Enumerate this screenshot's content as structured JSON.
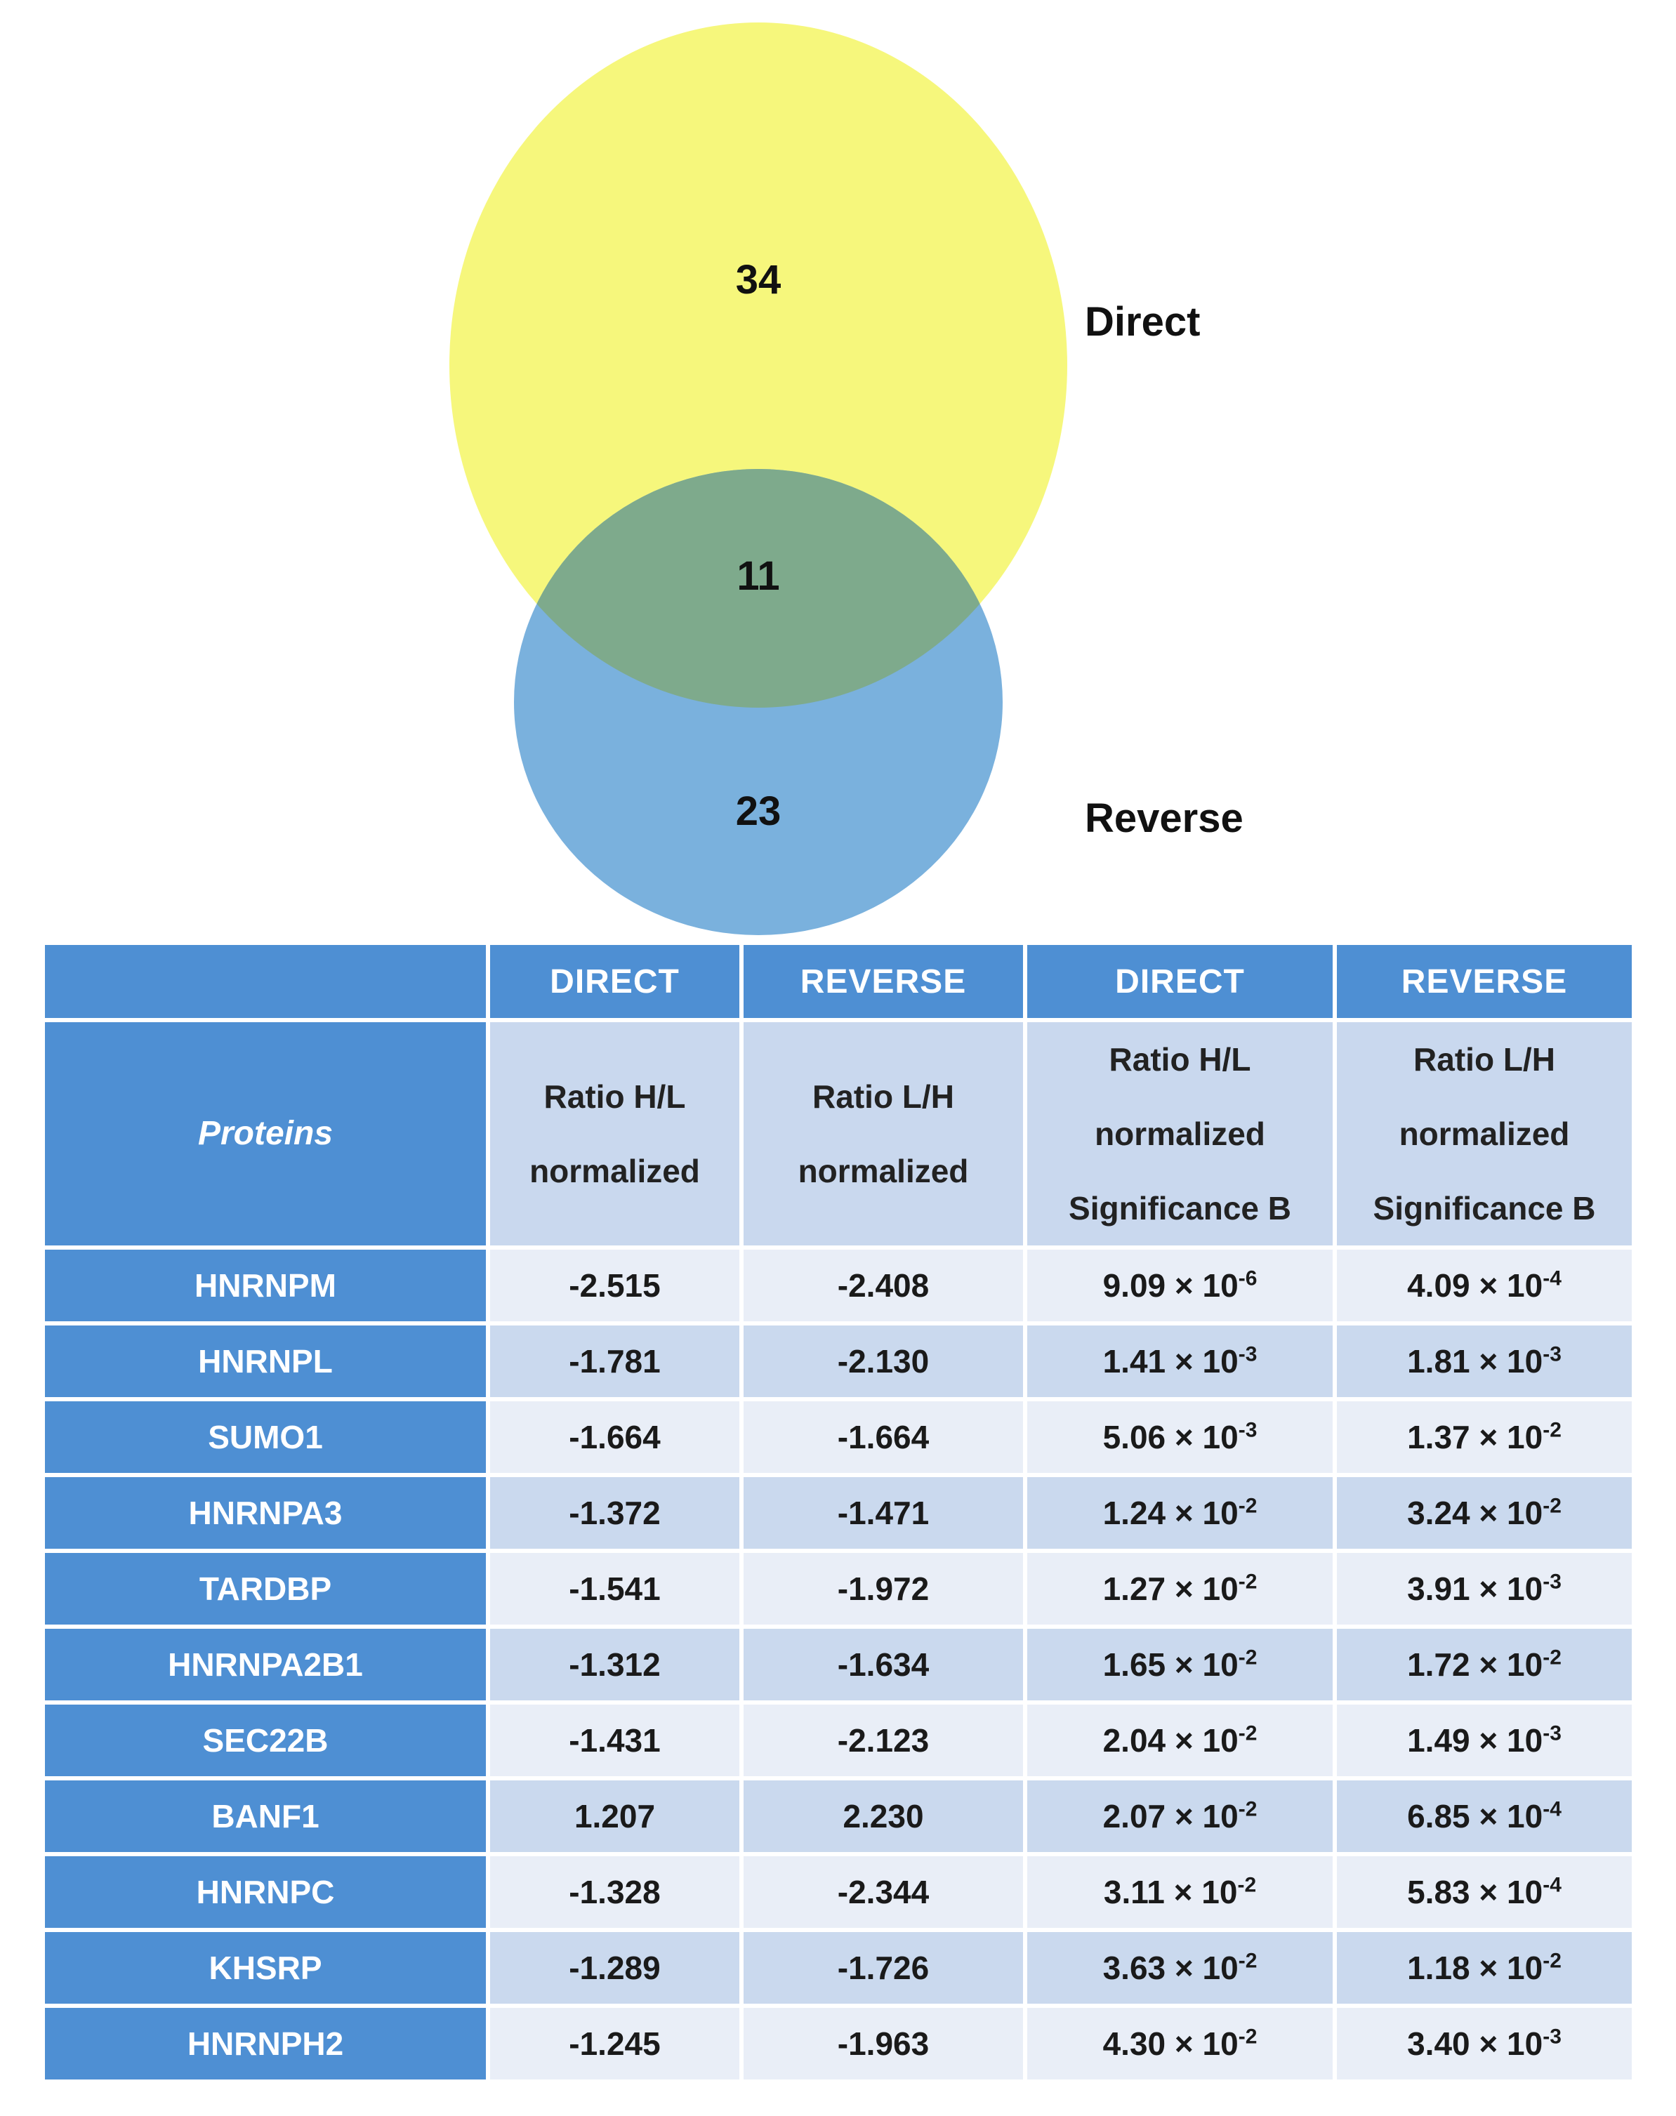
{
  "venn": {
    "sets": [
      {
        "name": "Direct",
        "only": "34",
        "color": "#f6f77c"
      },
      {
        "name": "Reverse",
        "only": "23",
        "color": "#7ab1dd"
      }
    ],
    "overlap": "11",
    "overlap_color": "#7eaa8c"
  },
  "table": {
    "group_headers": [
      "",
      "DIRECT",
      "REVERSE",
      "DIRECT",
      "REVERSE"
    ],
    "proteins_header": "Proteins",
    "sub_headers": [
      [
        "Ratio H/L",
        "normalized"
      ],
      [
        "Ratio L/H",
        "normalized"
      ],
      [
        "Ratio H/L",
        "normalized",
        "Significance B"
      ],
      [
        "Ratio L/H",
        "normalized",
        "Significance B"
      ]
    ],
    "rows": [
      {
        "protein": "HNRNPM",
        "direct_ratio": "-2.515",
        "reverse_ratio": "-2.408",
        "direct_sig": {
          "mantissa": "9.09",
          "exponent": "-6"
        },
        "reverse_sig": {
          "mantissa": "4.09",
          "exponent": "-4"
        }
      },
      {
        "protein": "HNRNPL",
        "direct_ratio": "-1.781",
        "reverse_ratio": "-2.130",
        "direct_sig": {
          "mantissa": "1.41",
          "exponent": "-3"
        },
        "reverse_sig": {
          "mantissa": "1.81",
          "exponent": "-3"
        }
      },
      {
        "protein": "SUMO1",
        "direct_ratio": "-1.664",
        "reverse_ratio": "-1.664",
        "direct_sig": {
          "mantissa": "5.06",
          "exponent": "-3"
        },
        "reverse_sig": {
          "mantissa": "1.37",
          "exponent": "-2"
        }
      },
      {
        "protein": "HNRNPA3",
        "direct_ratio": "-1.372",
        "reverse_ratio": "-1.471",
        "direct_sig": {
          "mantissa": "1.24",
          "exponent": "-2"
        },
        "reverse_sig": {
          "mantissa": "3.24",
          "exponent": "-2"
        }
      },
      {
        "protein": "TARDBP",
        "direct_ratio": "-1.541",
        "reverse_ratio": "-1.972",
        "direct_sig": {
          "mantissa": "1.27",
          "exponent": "-2"
        },
        "reverse_sig": {
          "mantissa": "3.91",
          "exponent": "-3"
        }
      },
      {
        "protein": "HNRNPA2B1",
        "direct_ratio": "-1.312",
        "reverse_ratio": "-1.634",
        "direct_sig": {
          "mantissa": "1.65",
          "exponent": "-2"
        },
        "reverse_sig": {
          "mantissa": "1.72",
          "exponent": "-2"
        }
      },
      {
        "protein": "SEC22B",
        "direct_ratio": "-1.431",
        "reverse_ratio": "-2.123",
        "direct_sig": {
          "mantissa": "2.04",
          "exponent": "-2"
        },
        "reverse_sig": {
          "mantissa": "1.49",
          "exponent": "-3"
        }
      },
      {
        "protein": "BANF1",
        "direct_ratio": "1.207",
        "reverse_ratio": "2.230",
        "direct_sig": {
          "mantissa": "2.07",
          "exponent": "-2"
        },
        "reverse_sig": {
          "mantissa": "6.85",
          "exponent": "-4"
        }
      },
      {
        "protein": "HNRNPC",
        "direct_ratio": "-1.328",
        "reverse_ratio": "-2.344",
        "direct_sig": {
          "mantissa": "3.11",
          "exponent": "-2"
        },
        "reverse_sig": {
          "mantissa": "5.83",
          "exponent": "-4"
        }
      },
      {
        "protein": "KHSRP",
        "direct_ratio": "-1.289",
        "reverse_ratio": "-1.726",
        "direct_sig": {
          "mantissa": "3.63",
          "exponent": "-2"
        },
        "reverse_sig": {
          "mantissa": "1.18",
          "exponent": "-2"
        }
      },
      {
        "protein": "HNRNPH2",
        "direct_ratio": "-1.245",
        "reverse_ratio": "-1.963",
        "direct_sig": {
          "mantissa": "4.30",
          "exponent": "-2"
        },
        "reverse_sig": {
          "mantissa": "3.40",
          "exponent": "-3"
        }
      }
    ],
    "colors": {
      "header_blue": "#4e8fd3",
      "row_light": "#e9eef7",
      "row_dark": "#cad9ee"
    }
  }
}
